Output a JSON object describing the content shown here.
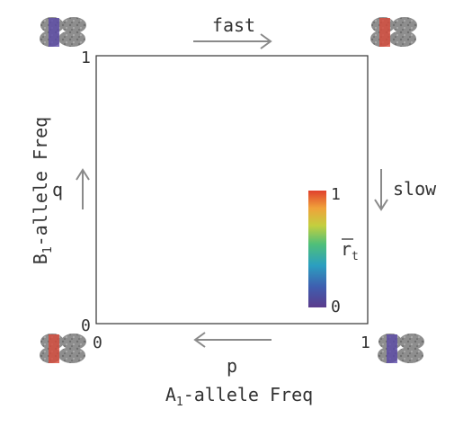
{
  "labels": {
    "top_arrow": "fast",
    "right_arrow": "slow",
    "left_symbol": "q",
    "bottom_symbol": "p",
    "y_axis_prefix": "B",
    "y_axis_sub": "1",
    "y_axis_suffix": "-allele Freq",
    "x_axis_prefix": "A",
    "x_axis_sub": "1",
    "x_axis_suffix": "-allele Freq",
    "y_tick_top": "1",
    "y_tick_bottom": "0",
    "x_tick_left": "0",
    "x_tick_right": "1"
  },
  "colorbar": {
    "max_label": "1",
    "min_label": "0",
    "symbol": "r",
    "symbol_sub": "t",
    "colors": [
      "#5b3b8c",
      "#3e5fb0",
      "#2b9fc0",
      "#4fbf7a",
      "#c3cf3f",
      "#f0a23a",
      "#e0402c"
    ]
  },
  "corner_genotypes": {
    "top_left_band": "#5b4aa8",
    "top_right_band": "#d84a3a",
    "bottom_left_band": "#d84a3a",
    "bottom_right_band": "#5b4aa8"
  }
}
